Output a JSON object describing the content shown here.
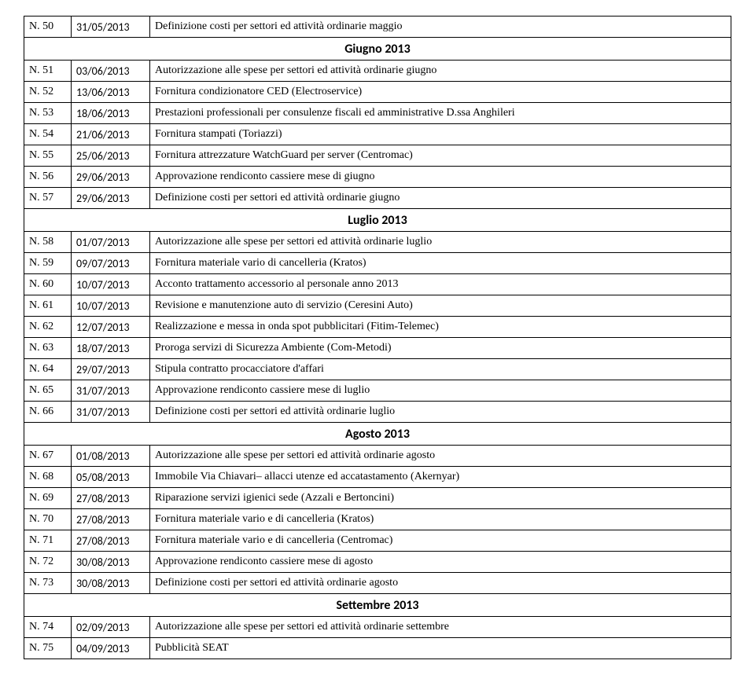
{
  "columns": {
    "num_width": 60,
    "date_width": 100
  },
  "fonts": {
    "body_family": "Times New Roman",
    "date_family": "Calibri",
    "header_family": "Calibri",
    "body_size": 14,
    "header_size": 16
  },
  "colors": {
    "border": "#000000",
    "text": "#000000",
    "background": "#ffffff"
  },
  "rows": [
    {
      "type": "row",
      "num": "N. 50",
      "date": "31/05/2013",
      "desc": "Definizione costi per settori ed attività ordinarie maggio"
    },
    {
      "type": "header",
      "label": "Giugno 2013"
    },
    {
      "type": "row",
      "num": "N. 51",
      "date": "03/06/2013",
      "desc": "Autorizzazione alle spese per settori ed attività ordinarie giugno"
    },
    {
      "type": "row",
      "num": "N. 52",
      "date": "13/06/2013",
      "desc": "Fornitura condizionatore CED (Electroservice)"
    },
    {
      "type": "row",
      "num": "N. 53",
      "date": "18/06/2013",
      "desc": "Prestazioni professionali per consulenze fiscali ed amministrative D.ssa Anghileri"
    },
    {
      "type": "row",
      "num": "N. 54",
      "date": "21/06/2013",
      "desc": "Fornitura stampati (Toriazzi)"
    },
    {
      "type": "row",
      "num": "N. 55",
      "date": "25/06/2013",
      "desc": "Fornitura attrezzature WatchGuard per server (Centromac)"
    },
    {
      "type": "row",
      "num": "N. 56",
      "date": "29/06/2013",
      "desc": "Approvazione rendiconto cassiere mese di giugno"
    },
    {
      "type": "row",
      "num": "N. 57",
      "date": "29/06/2013",
      "desc": "Definizione costi per settori ed attività ordinarie giugno"
    },
    {
      "type": "header",
      "label": "Luglio 2013"
    },
    {
      "type": "row",
      "num": "N. 58",
      "date": "01/07/2013",
      "desc": "Autorizzazione alle spese per settori ed attività ordinarie luglio"
    },
    {
      "type": "row",
      "num": "N. 59",
      "date": "09/07/2013",
      "desc": "Fornitura materiale vario di cancelleria (Kratos)"
    },
    {
      "type": "row",
      "num": "N. 60",
      "date": "10/07/2013",
      "desc": "Acconto trattamento accessorio al personale anno 2013"
    },
    {
      "type": "row",
      "num": "N. 61",
      "date": "10/07/2013",
      "desc": "Revisione e manutenzione auto di servizio (Ceresini Auto)"
    },
    {
      "type": "row",
      "num": "N. 62",
      "date": "12/07/2013",
      "desc": "Realizzazione e messa in onda spot pubblicitari (Fitim-Telemec)"
    },
    {
      "type": "row",
      "num": "N. 63",
      "date": "18/07/2013",
      "desc": "Proroga servizi di Sicurezza Ambiente (Com-Metodi)"
    },
    {
      "type": "row",
      "num": "N. 64",
      "date": "29/07/2013",
      "desc": "Stipula contratto procacciatore d'affari"
    },
    {
      "type": "row",
      "num": "N. 65",
      "date": "31/07/2013",
      "desc": "Approvazione rendiconto cassiere mese di luglio"
    },
    {
      "type": "row",
      "num": "N. 66",
      "date": "31/07/2013",
      "desc": "Definizione costi per settori ed attività ordinarie luglio"
    },
    {
      "type": "header",
      "label": "Agosto 2013"
    },
    {
      "type": "row",
      "num": "N. 67",
      "date": "01/08/2013",
      "desc": "Autorizzazione alle spese per settori ed attività ordinarie agosto"
    },
    {
      "type": "row",
      "num": "N. 68",
      "date": "05/08/2013",
      "desc": "Immobile Via Chiavari– allacci utenze ed accatastamento (Akernyar)"
    },
    {
      "type": "row",
      "num": "N. 69",
      "date": "27/08/2013",
      "desc": "Riparazione servizi igienici sede (Azzali e Bertoncini)"
    },
    {
      "type": "row",
      "num": "N. 70",
      "date": "27/08/2013",
      "desc": "Fornitura materiale vario e di cancelleria (Kratos)"
    },
    {
      "type": "row",
      "num": "N. 71",
      "date": "27/08/2013",
      "desc": "Fornitura materiale vario e di cancelleria (Centromac)"
    },
    {
      "type": "row",
      "num": "N. 72",
      "date": "30/08/2013",
      "desc": "Approvazione rendiconto cassiere mese di agosto"
    },
    {
      "type": "row",
      "num": "N. 73",
      "date": "30/08/2013",
      "desc": "Definizione costi per settori ed attività ordinarie agosto"
    },
    {
      "type": "header",
      "label": "Settembre 2013"
    },
    {
      "type": "row",
      "num": "N. 74",
      "date": "02/09/2013",
      "desc": "Autorizzazione alle spese per settori ed attività ordinarie settembre"
    },
    {
      "type": "row",
      "num": "N. 75",
      "date": "04/09/2013",
      "desc": "Pubblicità SEAT"
    }
  ]
}
